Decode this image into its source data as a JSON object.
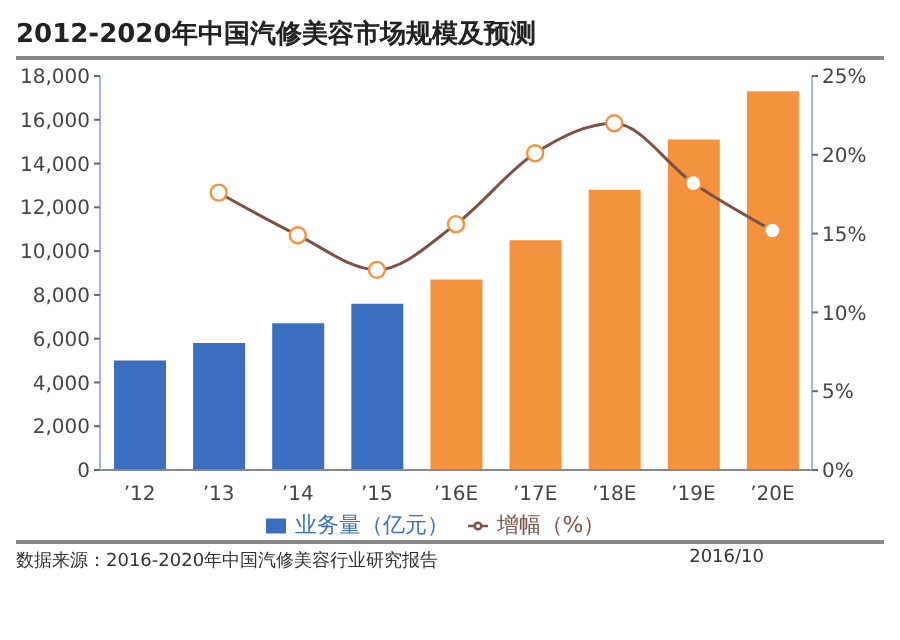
{
  "chart_data": {
    "type": "bar",
    "title": "2012-2020年中国汽修美容市场规模及预测",
    "categories": [
      "’12",
      "’13",
      "’14",
      "’15",
      "’16E",
      "’17E",
      "’18E",
      "’19E",
      "’20E"
    ],
    "series": [
      {
        "name": "业务量（亿元）",
        "color": "#3a6fc0",
        "colors": [
          "#3a6fc0",
          "#3a6fc0",
          "#3a6fc0",
          "#3a6fc0",
          "#f5923e",
          "#f5923e",
          "#f5923e",
          "#f5923e",
          "#f5923e"
        ],
        "values": [
          5000,
          5800,
          6700,
          7600,
          8700,
          10500,
          12800,
          15100,
          17300
        ]
      },
      {
        "name": "增幅（%）",
        "type": "line",
        "axis": "y2",
        "color": "#7b5346",
        "values": [
          null,
          17.6,
          14.9,
          12.7,
          15.6,
          20.1,
          22.0,
          18.2,
          15.2
        ]
      }
    ],
    "ylim": [
      0,
      18000
    ],
    "yticks": [
      {
        "value": 0,
        "label": "0"
      },
      {
        "value": 2000,
        "label": "2,000"
      },
      {
        "value": 4000,
        "label": "4,000"
      },
      {
        "value": 6000,
        "label": "6,000"
      },
      {
        "value": 8000,
        "label": "8,000"
      },
      {
        "value": 10000,
        "label": "10,000"
      },
      {
        "value": 12000,
        "label": "12,000"
      },
      {
        "value": 14000,
        "label": "14,000"
      },
      {
        "value": 16000,
        "label": "16,000"
      },
      {
        "value": 18000,
        "label": "18,000"
      }
    ],
    "y2lim": [
      0,
      25
    ],
    "y2ticks": [
      {
        "value": 0,
        "label": "0%"
      },
      {
        "value": 5,
        "label": "5%"
      },
      {
        "value": 10,
        "label": "10%"
      },
      {
        "value": 15,
        "label": "15%"
      },
      {
        "value": 20,
        "label": "20%"
      },
      {
        "value": 25,
        "label": "25%"
      }
    ],
    "marker": "circle",
    "legend": "bottom",
    "annotations": [
      "数据来源：2016-2020年中国汽修美容行业研究报告",
      "2016/10"
    ]
  }
}
